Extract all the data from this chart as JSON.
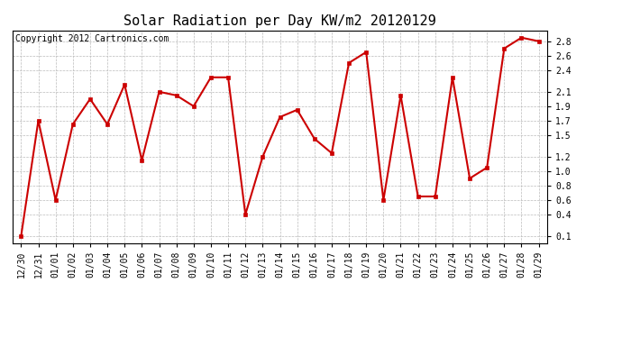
{
  "title": "Solar Radiation per Day KW/m2 20120129",
  "copyright_text": "Copyright 2012 Cartronics.com",
  "x_labels": [
    "12/30",
    "12/31",
    "01/01",
    "01/02",
    "01/03",
    "01/04",
    "01/05",
    "01/06",
    "01/07",
    "01/08",
    "01/09",
    "01/10",
    "01/11",
    "01/12",
    "01/13",
    "01/14",
    "01/15",
    "01/16",
    "01/17",
    "01/18",
    "01/19",
    "01/20",
    "01/21",
    "01/22",
    "01/23",
    "01/24",
    "01/25",
    "01/26",
    "01/27",
    "01/28",
    "01/29"
  ],
  "y_values": [
    0.1,
    1.7,
    0.6,
    1.65,
    2.0,
    1.65,
    2.2,
    1.15,
    2.1,
    2.05,
    1.9,
    2.3,
    2.3,
    0.4,
    1.2,
    1.75,
    1.85,
    1.45,
    1.25,
    2.5,
    2.65,
    0.6,
    2.05,
    0.65,
    0.65,
    2.3,
    0.9,
    1.05,
    2.7,
    2.85,
    2.8
  ],
  "line_color": "#cc0000",
  "marker": "s",
  "marker_size": 3,
  "line_width": 1.5,
  "ylim": [
    0.0,
    2.95
  ],
  "yticks": [
    0.1,
    0.4,
    0.6,
    0.8,
    1.0,
    1.2,
    1.5,
    1.7,
    1.9,
    2.1,
    2.4,
    2.6,
    2.8
  ],
  "bg_color": "#ffffff",
  "plot_bg_color": "#ffffff",
  "grid_color": "#bbbbbb",
  "title_fontsize": 11,
  "copyright_fontsize": 7,
  "tick_fontsize": 7
}
